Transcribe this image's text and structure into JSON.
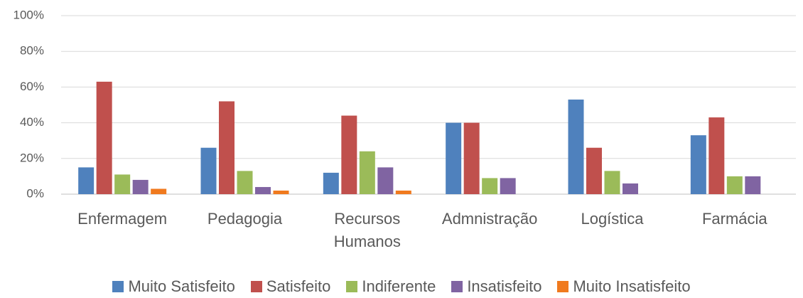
{
  "chart_data": {
    "type": "bar",
    "categories": [
      "Enfermagem",
      "Pedagogia",
      "Recursos Humanos",
      "Admnistração",
      "Logística",
      "Farmácia"
    ],
    "series": [
      {
        "name": "Muito Satisfeito",
        "color": "#4f81bd",
        "values": [
          15,
          26,
          12,
          40,
          53,
          33
        ]
      },
      {
        "name": "Satisfeito",
        "color": "#c0504d",
        "values": [
          63,
          52,
          44,
          40,
          26,
          43
        ]
      },
      {
        "name": "Indiferente",
        "color": "#9bbb59",
        "values": [
          11,
          13,
          24,
          9,
          13,
          10
        ]
      },
      {
        "name": "Insatisfeito",
        "color": "#8064a2",
        "values": [
          8,
          4,
          15,
          9,
          6,
          10
        ]
      },
      {
        "name": "Muito Insatisfeito",
        "color": "#f07a1e",
        "values": [
          3,
          2,
          2,
          0,
          0,
          0
        ]
      }
    ],
    "ylim": [
      0,
      100
    ],
    "yticks": [
      {
        "value": 0,
        "label": "0%"
      },
      {
        "value": 20,
        "label": "20%"
      },
      {
        "value": 40,
        "label": "40%"
      },
      {
        "value": 60,
        "label": "60%"
      },
      {
        "value": 80,
        "label": "80%"
      },
      {
        "value": 100,
        "label": "100%"
      }
    ],
    "grid": true
  }
}
